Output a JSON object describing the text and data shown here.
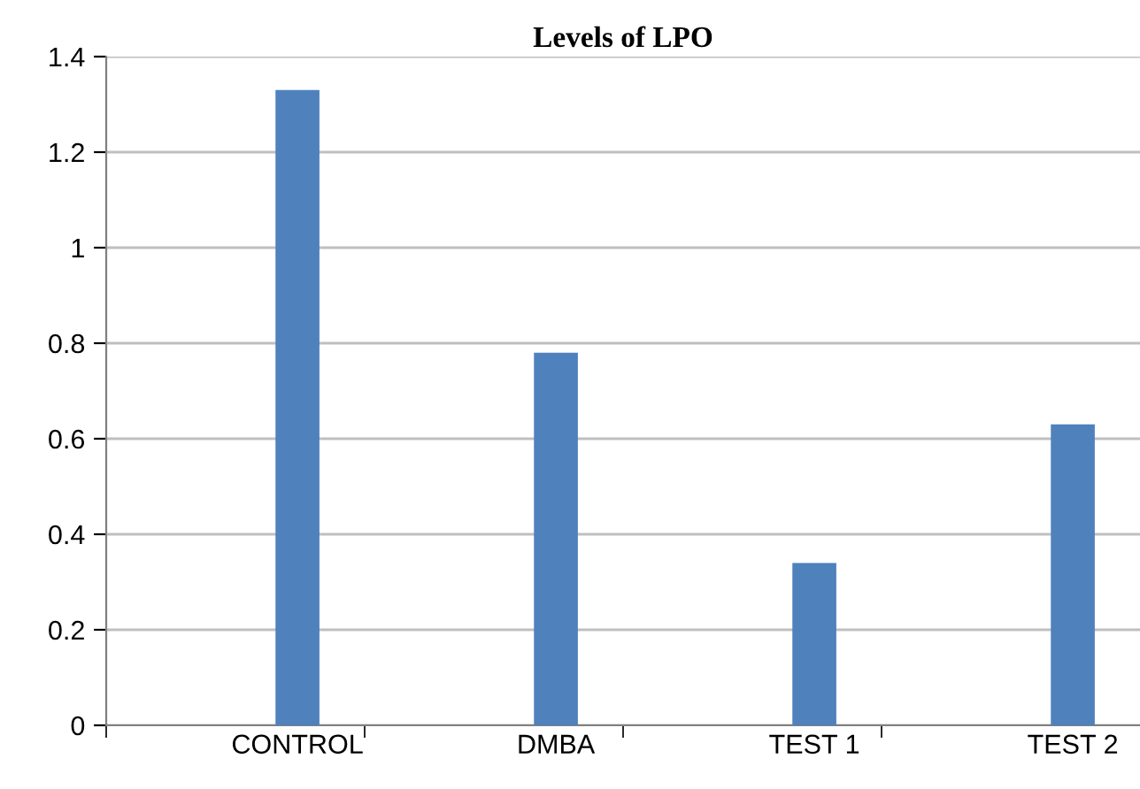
{
  "chart_data": {
    "type": "bar",
    "title": "Levels of LPO",
    "categories": [
      "CONTROL",
      "DMBA",
      "TEST 1",
      "TEST 2"
    ],
    "values": [
      1.33,
      0.78,
      0.34,
      0.63
    ],
    "color": "#4f81bd",
    "ylim": [
      0,
      1.4
    ],
    "yticks": [
      0,
      0.2,
      0.4,
      0.6,
      0.8,
      1,
      1.2,
      1.4
    ],
    "grid": "y",
    "legend": false
  }
}
